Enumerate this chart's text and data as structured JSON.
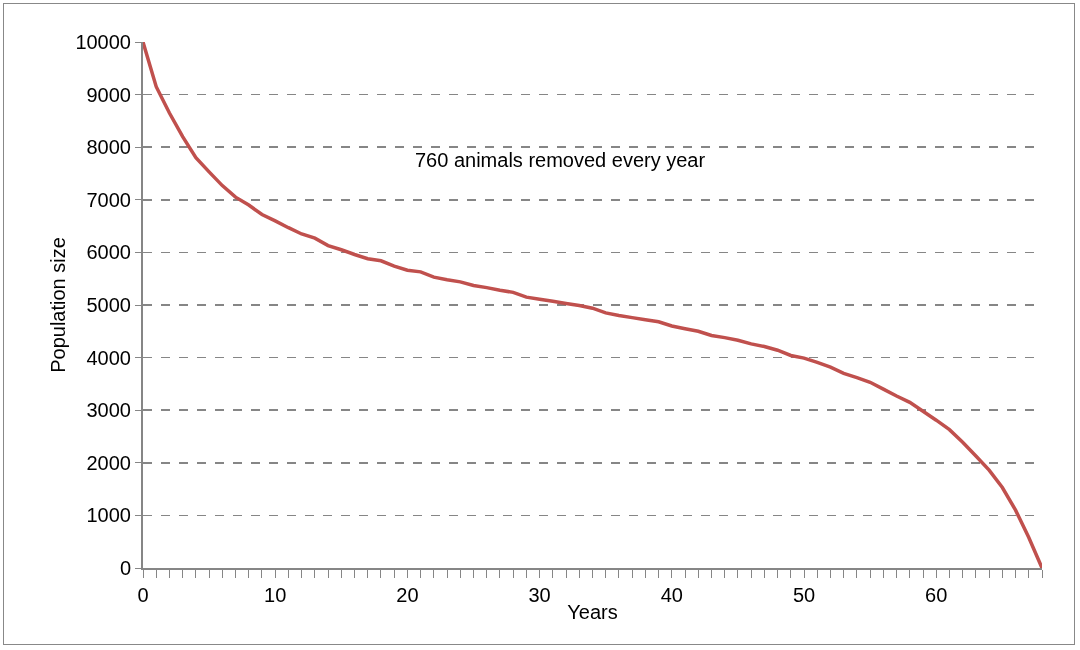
{
  "chart_data": {
    "type": "line",
    "xlabel": "Years",
    "ylabel": "Population size",
    "annotations": [
      "760 animals removed every year"
    ],
    "x": [
      0,
      1,
      2,
      3,
      4,
      5,
      6,
      7,
      8,
      9,
      10,
      11,
      12,
      13,
      14,
      15,
      16,
      17,
      18,
      19,
      20,
      21,
      22,
      23,
      24,
      25,
      26,
      27,
      28,
      29,
      30,
      31,
      32,
      33,
      34,
      35,
      36,
      37,
      38,
      39,
      40,
      41,
      42,
      43,
      44,
      45,
      46,
      47,
      48,
      49,
      50,
      51,
      52,
      53,
      54,
      55,
      56,
      57,
      58,
      59,
      60,
      61,
      62,
      63,
      64,
      65,
      66,
      67,
      68
    ],
    "series": [
      {
        "color": "#c0504d",
        "values": [
          10000,
          9150,
          8650,
          8200,
          7800,
          7530,
          7270,
          7050,
          6900,
          6720,
          6600,
          6470,
          6350,
          6270,
          6130,
          6050,
          5960,
          5880,
          5840,
          5740,
          5660,
          5630,
          5530,
          5480,
          5440,
          5370,
          5330,
          5280,
          5240,
          5150,
          5110,
          5070,
          5030,
          4990,
          4940,
          4850,
          4800,
          4760,
          4720,
          4680,
          4600,
          4550,
          4500,
          4420,
          4380,
          4330,
          4260,
          4210,
          4140,
          4040,
          3990,
          3910,
          3820,
          3700,
          3620,
          3530,
          3400,
          3270,
          3150,
          2980,
          2810,
          2630,
          2390,
          2130,
          1860,
          1530,
          1100,
          580,
          0
        ]
      }
    ],
    "xlim": [
      0,
      68
    ],
    "xticks": [
      0,
      10,
      20,
      30,
      40,
      50,
      60
    ],
    "ylim": [
      0,
      10000
    ],
    "yticks": [
      0,
      1000,
      2000,
      3000,
      4000,
      5000,
      6000,
      7000,
      8000,
      9000,
      10000
    ],
    "grid": "y",
    "marker": "none",
    "line_style": "solid"
  }
}
